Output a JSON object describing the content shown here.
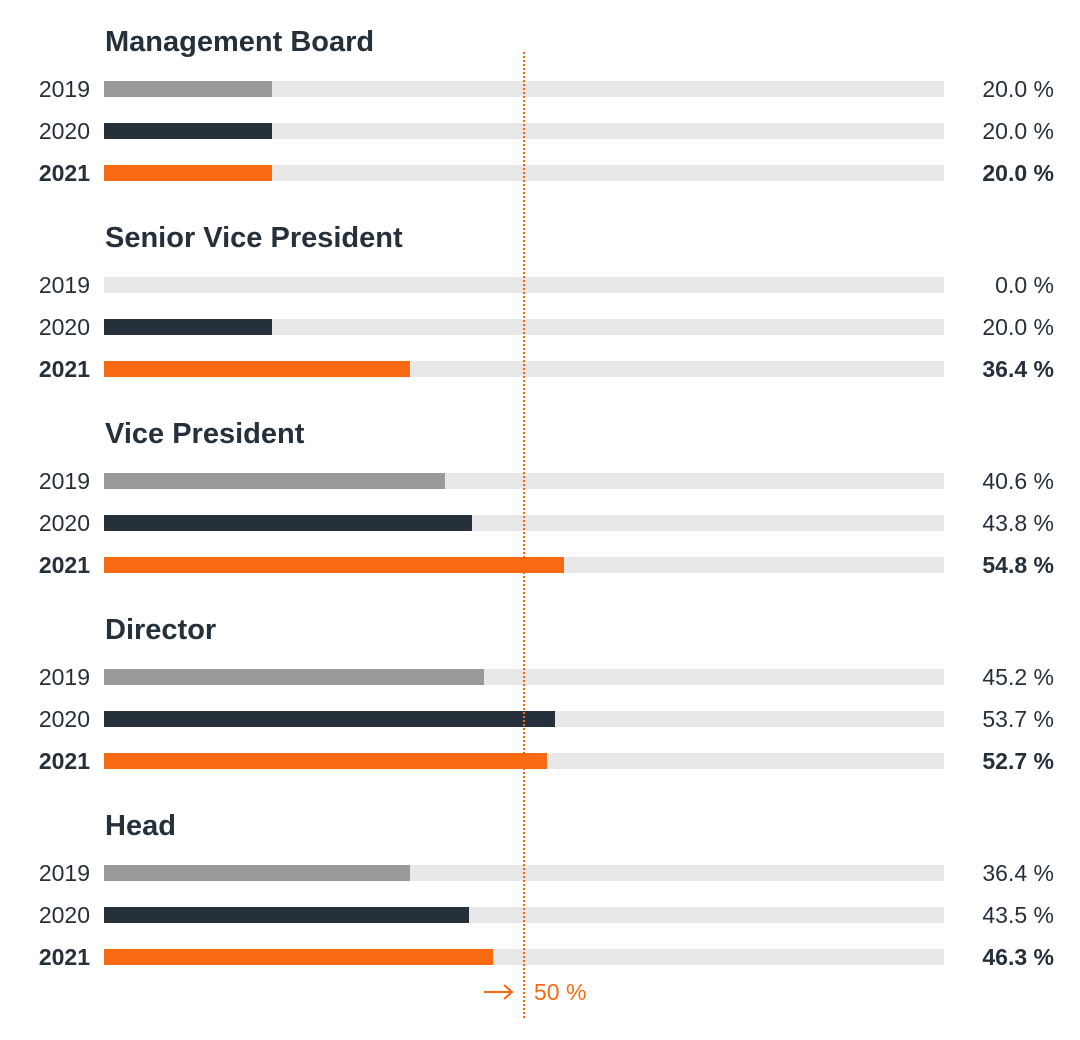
{
  "chart_data": {
    "type": "bar",
    "orientation": "horizontal",
    "xlim": [
      0,
      100
    ],
    "series_colors": {
      "2019": "#9a9a9a",
      "2020": "#25303a",
      "2021": "#f86a12"
    },
    "track_color": "#e8e8e8",
    "reference_line": {
      "value": 50,
      "label": "50 %",
      "color": "#f86a12"
    },
    "groups": [
      {
        "title": "Management Board",
        "rows": [
          {
            "year": "2019",
            "value": 20.0,
            "label": "20.0 %"
          },
          {
            "year": "2020",
            "value": 20.0,
            "label": "20.0 %"
          },
          {
            "year": "2021",
            "value": 20.0,
            "label": "20.0 %"
          }
        ]
      },
      {
        "title": "Senior Vice President",
        "rows": [
          {
            "year": "2019",
            "value": 0.0,
            "label": "0.0 %"
          },
          {
            "year": "2020",
            "value": 20.0,
            "label": "20.0 %"
          },
          {
            "year": "2021",
            "value": 36.4,
            "label": "36.4 %"
          }
        ]
      },
      {
        "title": "Vice President",
        "rows": [
          {
            "year": "2019",
            "value": 40.6,
            "label": "40.6 %"
          },
          {
            "year": "2020",
            "value": 43.8,
            "label": "43.8 %"
          },
          {
            "year": "2021",
            "value": 54.8,
            "label": "54.8 %"
          }
        ]
      },
      {
        "title": "Director",
        "rows": [
          {
            "year": "2019",
            "value": 45.2,
            "label": "45.2 %"
          },
          {
            "year": "2020",
            "value": 53.7,
            "label": "53.7 %"
          },
          {
            "year": "2021",
            "value": 52.7,
            "label": "52.7 %"
          }
        ]
      },
      {
        "title": "Head",
        "rows": [
          {
            "year": "2019",
            "value": 36.4,
            "label": "36.4 %"
          },
          {
            "year": "2020",
            "value": 43.5,
            "label": "43.5 %"
          },
          {
            "year": "2021",
            "value": 46.3,
            "label": "46.3 %"
          }
        ]
      }
    ]
  }
}
